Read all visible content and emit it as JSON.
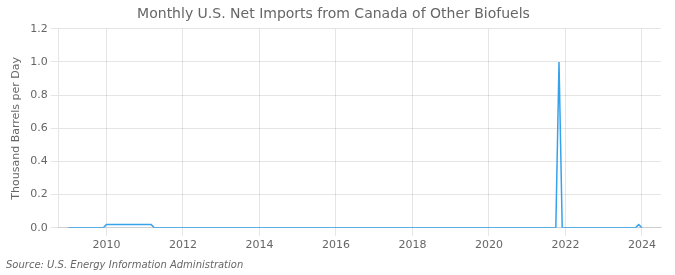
{
  "chart_data": {
    "type": "line",
    "title": "Monthly U.S. Net Imports from Canada of Other Biofuels",
    "y_label": "Thousand Barrels per Day",
    "source": "Source: U.S. Energy Information Administration",
    "x": [
      2009.0,
      2009.083,
      2009.167,
      2009.25,
      2009.333,
      2009.417,
      2009.5,
      2009.583,
      2009.667,
      2009.75,
      2009.833,
      2009.917,
      2010.0,
      2010.083,
      2010.167,
      2010.25,
      2010.333,
      2010.417,
      2010.5,
      2010.583,
      2010.667,
      2010.75,
      2010.833,
      2010.917,
      2011.0,
      2011.083,
      2011.167,
      2011.25,
      2011.333,
      2011.417,
      2011.5,
      2011.583,
      2011.667,
      2011.75,
      2011.833,
      2011.917,
      2012.0,
      2012.083,
      2012.167,
      2012.25,
      2012.333,
      2012.417,
      2012.5,
      2012.583,
      2012.667,
      2012.75,
      2012.833,
      2012.917,
      2013.0,
      2013.083,
      2013.167,
      2013.25,
      2013.333,
      2013.417,
      2013.5,
      2013.583,
      2013.667,
      2013.75,
      2013.833,
      2013.917,
      2014.0,
      2014.083,
      2014.167,
      2014.25,
      2014.333,
      2014.417,
      2014.5,
      2014.583,
      2014.667,
      2014.75,
      2014.833,
      2014.917,
      2015.0,
      2015.083,
      2015.167,
      2015.25,
      2015.333,
      2015.417,
      2015.5,
      2015.583,
      2015.667,
      2015.75,
      2015.833,
      2015.917,
      2016.0,
      2016.083,
      2016.167,
      2016.25,
      2016.333,
      2016.417,
      2016.5,
      2016.583,
      2016.667,
      2016.75,
      2016.833,
      2016.917,
      2017.0,
      2017.083,
      2017.167,
      2017.25,
      2017.333,
      2017.417,
      2017.5,
      2017.583,
      2017.667,
      2017.75,
      2017.833,
      2017.917,
      2018.0,
      2018.083,
      2018.167,
      2018.25,
      2018.333,
      2018.417,
      2018.5,
      2018.583,
      2018.667,
      2018.75,
      2018.833,
      2018.917,
      2019.0,
      2019.083,
      2019.167,
      2019.25,
      2019.333,
      2019.417,
      2019.5,
      2019.583,
      2019.667,
      2019.75,
      2019.833,
      2019.917,
      2020.0,
      2020.083,
      2020.167,
      2020.25,
      2020.333,
      2020.417,
      2020.5,
      2020.583,
      2020.667,
      2020.75,
      2020.833,
      2020.917,
      2021.0,
      2021.083,
      2021.167,
      2021.25,
      2021.333,
      2021.417,
      2021.5,
      2021.583,
      2021.667,
      2021.75,
      2021.833,
      2021.917,
      2022.0,
      2022.083,
      2022.167,
      2022.25,
      2022.333,
      2022.417,
      2022.5,
      2022.583,
      2022.667,
      2022.75,
      2022.833,
      2022.917,
      2023.0,
      2023.083,
      2023.167,
      2023.25,
      2023.333,
      2023.417,
      2023.5,
      2023.583,
      2023.667,
      2023.75,
      2023.833,
      2023.917,
      2024.0
    ],
    "values": [
      0.0,
      0.0,
      0.0,
      0.0,
      0.0,
      0.0,
      0.0,
      0.0,
      0.0,
      0.0,
      0.0,
      0.0,
      0.02,
      0.02,
      0.02,
      0.02,
      0.02,
      0.02,
      0.02,
      0.02,
      0.02,
      0.02,
      0.02,
      0.02,
      0.02,
      0.02,
      0.02,
      0.0,
      0.0,
      0.0,
      0.0,
      0.0,
      0.0,
      0.0,
      0.0,
      0.0,
      0.0,
      0.0,
      0.0,
      0.0,
      0.0,
      0.0,
      0.0,
      0.0,
      0.0,
      0.0,
      0.0,
      0.0,
      0.0,
      0.0,
      0.0,
      0.0,
      0.0,
      0.0,
      0.0,
      0.0,
      0.0,
      0.0,
      0.0,
      0.0,
      0.0,
      0.0,
      0.0,
      0.0,
      0.0,
      0.0,
      0.0,
      0.0,
      0.0,
      0.0,
      0.0,
      0.0,
      0.0,
      0.0,
      0.0,
      0.0,
      0.0,
      0.0,
      0.0,
      0.0,
      0.0,
      0.0,
      0.0,
      0.0,
      0.0,
      0.0,
      0.0,
      0.0,
      0.0,
      0.0,
      0.0,
      0.0,
      0.0,
      0.0,
      0.0,
      0.0,
      0.0,
      0.0,
      0.0,
      0.0,
      0.0,
      0.0,
      0.0,
      0.0,
      0.0,
      0.0,
      0.0,
      0.0,
      0.0,
      0.0,
      0.0,
      0.0,
      0.0,
      0.0,
      0.0,
      0.0,
      0.0,
      0.0,
      0.0,
      0.0,
      0.0,
      0.0,
      0.0,
      0.0,
      0.0,
      0.0,
      0.0,
      0.0,
      0.0,
      0.0,
      0.0,
      0.0,
      0.0,
      0.0,
      0.0,
      0.0,
      0.0,
      0.0,
      0.0,
      0.0,
      0.0,
      0.0,
      0.0,
      0.0,
      0.0,
      0.0,
      0.0,
      0.0,
      0.0,
      0.0,
      0.0,
      0.0,
      0.0,
      0.0,
      1.0,
      0.0,
      0.0,
      0.0,
      0.0,
      0.0,
      0.0,
      0.0,
      0.0,
      0.0,
      0.0,
      0.0,
      0.0,
      0.0,
      0.0,
      0.0,
      0.0,
      0.0,
      0.0,
      0.0,
      0.0,
      0.0,
      0.0,
      0.0,
      0.0,
      0.02,
      0.0
    ],
    "xlim": [
      2008.75,
      2024.5
    ],
    "xticks": [
      2010,
      2012,
      2014,
      2016,
      2018,
      2020,
      2022,
      2024
    ],
    "ylim": [
      0.0,
      1.2
    ],
    "yticks": [
      {
        "value": 0.0,
        "label": "0.0"
      },
      0.2,
      0.4,
      0.6,
      0.8,
      {
        "value": 1.0,
        "label": "1.0"
      },
      1.2
    ],
    "grid": true
  }
}
